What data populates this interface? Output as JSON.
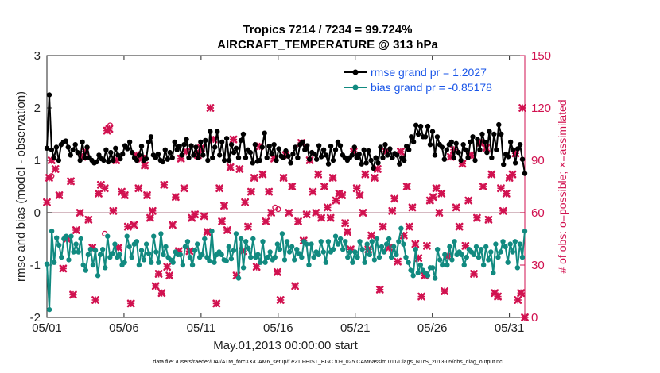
{
  "chart_data": {
    "type": "line",
    "title_line1": "Tropics 7214 / 7234 = 99.724%",
    "title_line2": "AIRCRAFT_TEMPERATURE @ 313 hPa",
    "xlabel": "May.01,2013 00:00:00 start",
    "ylabel": "rmse and bias (model - observation)",
    "ylabel_right": "# of obs: o=possible; ×=assimilated",
    "ylim": [
      -2,
      3
    ],
    "ylim_right": [
      0,
      150
    ],
    "xlim": [
      0,
      31
    ],
    "x_tick_labels": [
      "05/01",
      "05/06",
      "05/11",
      "05/16",
      "05/21",
      "05/26",
      "05/31"
    ],
    "x_tick_values": [
      0,
      5,
      10,
      15,
      20,
      25,
      30
    ],
    "y_tick_values": [
      -2,
      -1,
      0,
      1,
      2,
      3
    ],
    "y_tick_labels": [
      "-2",
      "-1",
      "0",
      "1",
      "2",
      "3"
    ],
    "y_tick_values_right": [
      0,
      30,
      60,
      90,
      120,
      150
    ],
    "y_tick_labels_right": [
      "0",
      "30",
      "60",
      "90",
      "120",
      "150"
    ],
    "legend_position": "top-right",
    "series": [
      {
        "name": "rmse grand pr = 1.2027",
        "color": "#000000",
        "values": [
          1.23,
          2.25,
          1.2,
          1.05,
          1.25,
          1.0,
          1.3,
          1.35,
          1.37,
          1.25,
          1.1,
          1.2,
          1.3,
          1.15,
          1.0,
          1.35,
          1.05,
          1.25,
          1.05,
          1.0,
          0.95,
          0.97,
          1.1,
          1.03,
          1.0,
          1.2,
          0.97,
          1.15,
          1.0,
          1.23,
          1.1,
          1.03,
          1.12,
          1.28,
          1.22,
          1.35,
          1.15,
          1.05,
          1.0,
          1.1,
          1.27,
          1.0,
          1.03,
          1.35,
          1.45,
          1.1,
          1.05,
          1.12,
          1.0,
          0.97,
          1.2,
          1.02,
          1.15,
          1.05,
          1.35,
          1.2,
          1.27,
          1.1,
          1.3,
          1.4,
          1.05,
          1.28,
          1.1,
          1.25,
          1.05,
          1.35,
          1.1,
          1.38,
          1.0,
          1.55,
          1.05,
          1.25,
          1.55,
          1.1,
          1.35,
          1.0,
          1.42,
          1.0,
          1.3,
          1.15,
          1.23,
          1.05,
          1.38,
          1.5,
          1.05,
          1.2,
          1.15,
          0.95,
          1.3,
          0.98,
          1.0,
          1.25,
          1.52,
          1.05,
          1.27,
          1.12,
          1.3,
          1.0,
          1.22,
          1.08,
          1.05,
          1.18,
          1.08,
          0.95,
          1.12,
          1.25,
          1.05,
          1.3,
          1.35,
          1.2,
          1.28,
          1.02,
          1.15,
          1.12,
          1.02,
          1.28,
          1.07,
          1.2,
          1.1,
          0.93,
          1.27,
          1.0,
          1.2,
          1.35,
          1.28,
          1.1,
          1.05,
          1.0,
          1.05,
          1.1,
          1.25,
          1.05,
          1.12,
          0.93,
          1.2,
          0.95,
          1.18,
          1.0,
          0.85,
          1.05,
          0.95,
          1.25,
          1.05,
          1.3,
          1.1,
          1.22,
          1.05,
          1.13,
          1.1,
          0.93,
          1.05,
          1.0,
          1.27,
          1.2,
          1.45,
          1.35,
          1.67,
          1.5,
          1.65,
          1.45,
          1.45,
          1.65,
          1.3,
          1.55,
          1.1,
          1.45,
          1.3,
          1.25,
          1.02,
          1.2,
          1.3,
          1.35,
          1.05,
          1.32,
          1.15,
          1.0,
          1.3,
          1.2,
          1.05,
          1.35,
          1.45,
          1.0,
          1.4,
          1.2,
          1.5,
          1.35,
          1.15,
          1.55,
          1.05,
          1.5,
          1.2,
          1.68,
          1.5,
          0.92,
          1.12,
          1.07,
          1.35,
          1.2,
          0.95,
          1.22,
          1.3,
          1.02,
          0.75
        ]
      },
      {
        "name": "bias grand pr = -0.85178",
        "color": "#118a80",
        "values": [
          -0.98,
          -1.85,
          -0.35,
          -0.95,
          -0.48,
          -0.62,
          -0.85,
          -0.5,
          -0.45,
          -0.9,
          -0.45,
          -0.75,
          -0.6,
          -0.75,
          -0.5,
          -1.0,
          -1.1,
          -0.8,
          -0.7,
          -1.0,
          -0.72,
          -1.2,
          -0.8,
          -0.7,
          -1.05,
          -0.45,
          -0.85,
          -0.78,
          -0.6,
          -0.85,
          -0.8,
          -1.0,
          -0.95,
          -0.45,
          -0.65,
          -0.85,
          -0.6,
          -0.55,
          -1.0,
          -0.72,
          -0.9,
          -0.6,
          -0.78,
          -0.95,
          -0.45,
          -0.75,
          -0.95,
          -0.4,
          -0.8,
          -0.65,
          -0.85,
          -0.9,
          -0.95,
          -0.75,
          -0.8,
          -0.8,
          -1.0,
          -0.65,
          -0.55,
          -0.85,
          -1.0,
          -0.72,
          -0.6,
          -0.85,
          -0.8,
          -0.5,
          -0.85,
          -0.92,
          -0.35,
          -0.95,
          -0.8,
          -0.75,
          -0.8,
          -0.9,
          -0.92,
          -0.65,
          -0.88,
          -0.72,
          -0.4,
          -1.25,
          -0.5,
          -1.05,
          -0.55,
          -0.68,
          -0.85,
          -0.5,
          -0.85,
          -0.8,
          -0.95,
          -0.55,
          -0.95,
          -0.85,
          -0.75,
          -0.9,
          -0.85,
          -0.6,
          -0.7,
          -0.4,
          -0.9,
          -0.55,
          -0.75,
          -0.65,
          -0.9,
          -0.7,
          -0.78,
          -0.85,
          -0.55,
          -0.6,
          -1.0,
          -0.6,
          -0.85,
          -0.75,
          -0.8,
          -0.55,
          -0.75,
          -0.95,
          -0.55,
          -0.75,
          -0.7,
          -0.45,
          -0.6,
          -0.5,
          -0.7,
          -0.55,
          -0.85,
          -0.75,
          -0.95,
          -0.75,
          -0.85,
          -0.55,
          -0.7,
          -0.95,
          -0.6,
          -0.8,
          -0.55,
          -0.9,
          -0.5,
          -0.85,
          -0.65,
          -0.75,
          -0.6,
          -0.5,
          -0.85,
          -0.65,
          -0.8,
          -0.55,
          -0.3,
          -0.6,
          -0.85,
          -0.95,
          -1.1,
          -1.2,
          -0.7,
          -1.15,
          -1.0,
          -1.1,
          -1.15,
          -1.2,
          -1.05,
          -1.05,
          -1.25,
          -0.7,
          -0.9,
          -1.0,
          -0.8,
          -1.0,
          -0.65,
          -0.9,
          -0.55,
          -0.8,
          -0.75,
          -0.8,
          -1.0,
          -0.85,
          -0.7,
          -0.75,
          -0.8,
          -0.65,
          -0.85,
          -0.7,
          -1.0,
          -0.65,
          -0.9,
          -0.75,
          -1.15,
          -0.6,
          -0.85,
          -0.75,
          -0.55,
          -0.65,
          -0.95,
          -0.6,
          -0.75,
          -0.55,
          -1.05,
          -0.6,
          -0.85,
          -0.35
        ]
      }
    ],
    "obs_assimilated": {
      "name": "assimilated (×)",
      "color": "#d11250",
      "x": [
        0.0,
        0.15,
        0.3,
        0.55,
        0.8,
        1.05,
        1.3,
        1.55,
        1.7,
        1.9,
        2.15,
        2.3,
        2.5,
        2.7,
        2.95,
        3.15,
        3.35,
        3.5,
        3.75,
        3.9,
        4.05,
        4.3,
        4.5,
        4.65,
        4.85,
        5.05,
        5.25,
        5.45,
        5.65,
        5.8,
        5.95,
        6.15,
        6.35,
        6.5,
        6.7,
        6.85,
        7.05,
        7.25,
        7.45,
        7.6,
        7.8,
        7.95,
        8.15,
        8.35,
        8.55,
        8.7,
        8.9,
        9.05,
        9.25,
        9.4,
        9.6,
        9.8,
        10.0,
        10.2,
        10.4,
        10.6,
        10.8,
        11.0,
        11.2,
        11.35,
        11.5,
        11.7,
        11.9,
        12.1,
        12.3,
        12.5,
        12.7,
        12.85,
        13.05,
        13.25,
        13.45,
        13.6,
        13.8,
        14.0,
        14.2,
        14.4,
        14.55,
        14.75,
        14.95,
        15.15,
        15.35,
        15.5,
        15.7,
        15.9,
        16.1,
        16.3,
        16.5,
        16.65,
        16.85,
        17.05,
        17.25,
        17.45,
        17.6,
        17.8,
        18.0,
        18.2,
        18.4,
        18.55,
        18.75,
        18.95,
        19.15,
        19.35,
        19.5,
        19.7,
        19.9,
        20.1,
        20.3,
        20.5,
        20.65,
        20.85,
        21.05,
        21.25,
        21.45,
        21.6,
        21.8,
        22.0,
        22.2,
        22.4,
        22.55,
        22.75,
        22.95,
        23.15,
        23.35,
        23.5,
        23.7,
        23.9,
        24.1,
        24.3,
        24.5,
        24.65,
        24.85,
        25.05,
        25.25,
        25.45,
        25.6,
        25.8,
        26.0,
        26.2,
        26.4,
        26.55,
        26.75,
        26.95,
        27.15,
        27.35,
        27.5,
        27.7,
        27.9,
        28.1,
        28.3,
        28.5,
        28.65,
        28.85,
        29.05,
        29.25,
        29.45,
        29.6,
        29.8,
        30.0,
        30.2,
        30.4,
        30.55,
        30.75,
        30.85,
        31.0
      ],
      "y": [
        66,
        80,
        90,
        85,
        70,
        28,
        45,
        78,
        13,
        50,
        60,
        92,
        95,
        56,
        40,
        10,
        71,
        76,
        74,
        107,
        108,
        61,
        90,
        40,
        72,
        70,
        52,
        8,
        53,
        93,
        74,
        91,
        87,
        70,
        57,
        61,
        18,
        25,
        14,
        76,
        29,
        24,
        53,
        69,
        38,
        91,
        74,
        95,
        38,
        57,
        59,
        93,
        97,
        58,
        49,
        120,
        102,
        8,
        74,
        55,
        64,
        50,
        86,
        102,
        24,
        85,
        38,
        66,
        52,
        72,
        80,
        29,
        98,
        82,
        55,
        72,
        60,
        91,
        26,
        10,
        80,
        93,
        60,
        75,
        18,
        55,
        100,
        44,
        59,
        90,
        72,
        60,
        82,
        57,
        75,
        63,
        57,
        80,
        67,
        71,
        70,
        54,
        49,
        39,
        95,
        74,
        70,
        60,
        82,
        39,
        47,
        80,
        85,
        16,
        52,
        95,
        40,
        61,
        68,
        32,
        95,
        47,
        75,
        52,
        63,
        42,
        34,
        12,
        24,
        41,
        67,
        69,
        74,
        60,
        71,
        15,
        35,
        92,
        96,
        63,
        52,
        88,
        41,
        67,
        93,
        25,
        57,
        100,
        75,
        97,
        56,
        82,
        14,
        12,
        74,
        61,
        71,
        80,
        82,
        94,
        10,
        14,
        120,
        0
      ]
    },
    "obs_possible": {
      "name": "possible (o)",
      "color": "#d11250",
      "x": [
        0.3,
        3.9,
        4.1,
        14.8,
        15.0,
        3.75
      ],
      "y": [
        81,
        108,
        110,
        63,
        62,
        48
      ]
    }
  },
  "legend": {
    "rmse_label": "rmse grand pr = 1.2027",
    "bias_label": "bias grand pr = -0.85178"
  },
  "footer": "data file: /Users/raeder/DAI/ATM_forcXX/CAM6_setup/f.e21.FHIST_BGC.f09_025.CAM6assim.011/Diags_NTrS_2013-05/obs_diag_output.nc"
}
